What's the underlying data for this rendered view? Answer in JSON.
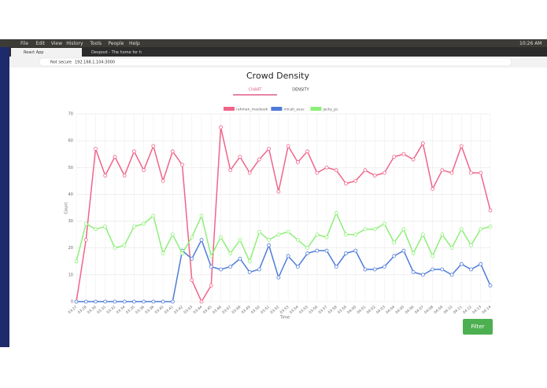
{
  "system_bar": {
    "menu": [
      "File",
      "Edit",
      "View",
      "History",
      "Tools",
      "People",
      "Help"
    ],
    "clock": "10:26 AM"
  },
  "browser": {
    "tabs": [
      "React App",
      "Devpost - The home for h"
    ],
    "security": "Not secure",
    "url": "192.168.1.104:3000"
  },
  "page": {
    "title": "Crowd Density",
    "tabs": [
      "CHART",
      "DENSITY"
    ],
    "button": "Filter"
  },
  "chart_data": {
    "type": "line",
    "categories": [
      "03:27",
      "03:28",
      "03:30",
      "03:31",
      "03:32",
      "03:34",
      "03:35",
      "03:36",
      "03:38",
      "03:40",
      "03:41",
      "03:42",
      "03:43",
      "03:44",
      "03:45",
      "03:46",
      "03:47",
      "03:48",
      "03:49",
      "03:50",
      "03:51",
      "03:52",
      "03:53",
      "03:54",
      "03:55",
      "03:56",
      "03:57",
      "03:58",
      "03:59",
      "04:00",
      "04:01",
      "04:02",
      "04:03",
      "04:04",
      "04:05",
      "04:06",
      "04:07",
      "04:08",
      "04:09",
      "04:10",
      "04:11",
      "04:12",
      "04:13",
      "04:14"
    ],
    "series": [
      {
        "name": "rahman_macbook",
        "color": "#f0648a",
        "values": [
          0,
          23,
          57,
          47,
          54,
          47,
          56,
          49,
          58,
          45,
          56,
          51,
          8,
          0,
          6,
          65,
          49,
          54,
          48,
          53,
          57,
          41,
          58,
          52,
          56,
          48,
          50,
          49,
          44,
          45,
          49,
          47,
          48,
          54,
          55,
          53,
          59,
          42,
          49,
          48,
          58,
          48,
          48,
          34
        ]
      },
      {
        "name": "micah_asus",
        "color": "#4f7bd9",
        "values": [
          0,
          0,
          0,
          0,
          0,
          0,
          0,
          0,
          0,
          0,
          0,
          19,
          16,
          23,
          13,
          12,
          13,
          16,
          11,
          12,
          21,
          9,
          17,
          13,
          18,
          19,
          19,
          13,
          18,
          19,
          12,
          12,
          13,
          17,
          19,
          11,
          10,
          12,
          12,
          10,
          14,
          12,
          14,
          6
        ]
      },
      {
        "name": "jacky_pc",
        "color": "#8def78",
        "values": [
          15,
          29,
          27,
          28,
          20,
          21,
          28,
          29,
          32,
          18,
          25,
          18,
          24,
          32,
          17,
          24,
          18,
          23,
          15,
          26,
          23,
          25,
          26,
          23,
          20,
          25,
          24,
          33,
          25,
          25,
          27,
          27,
          29,
          22,
          27,
          18,
          25,
          17,
          25,
          20,
          27,
          21,
          27,
          28
        ]
      }
    ],
    "ylim": [
      0,
      70
    ],
    "yticks": [
      0,
      10,
      20,
      30,
      40,
      50,
      60,
      70
    ],
    "x_label": "Time",
    "y_label": "Count",
    "grid": true
  }
}
